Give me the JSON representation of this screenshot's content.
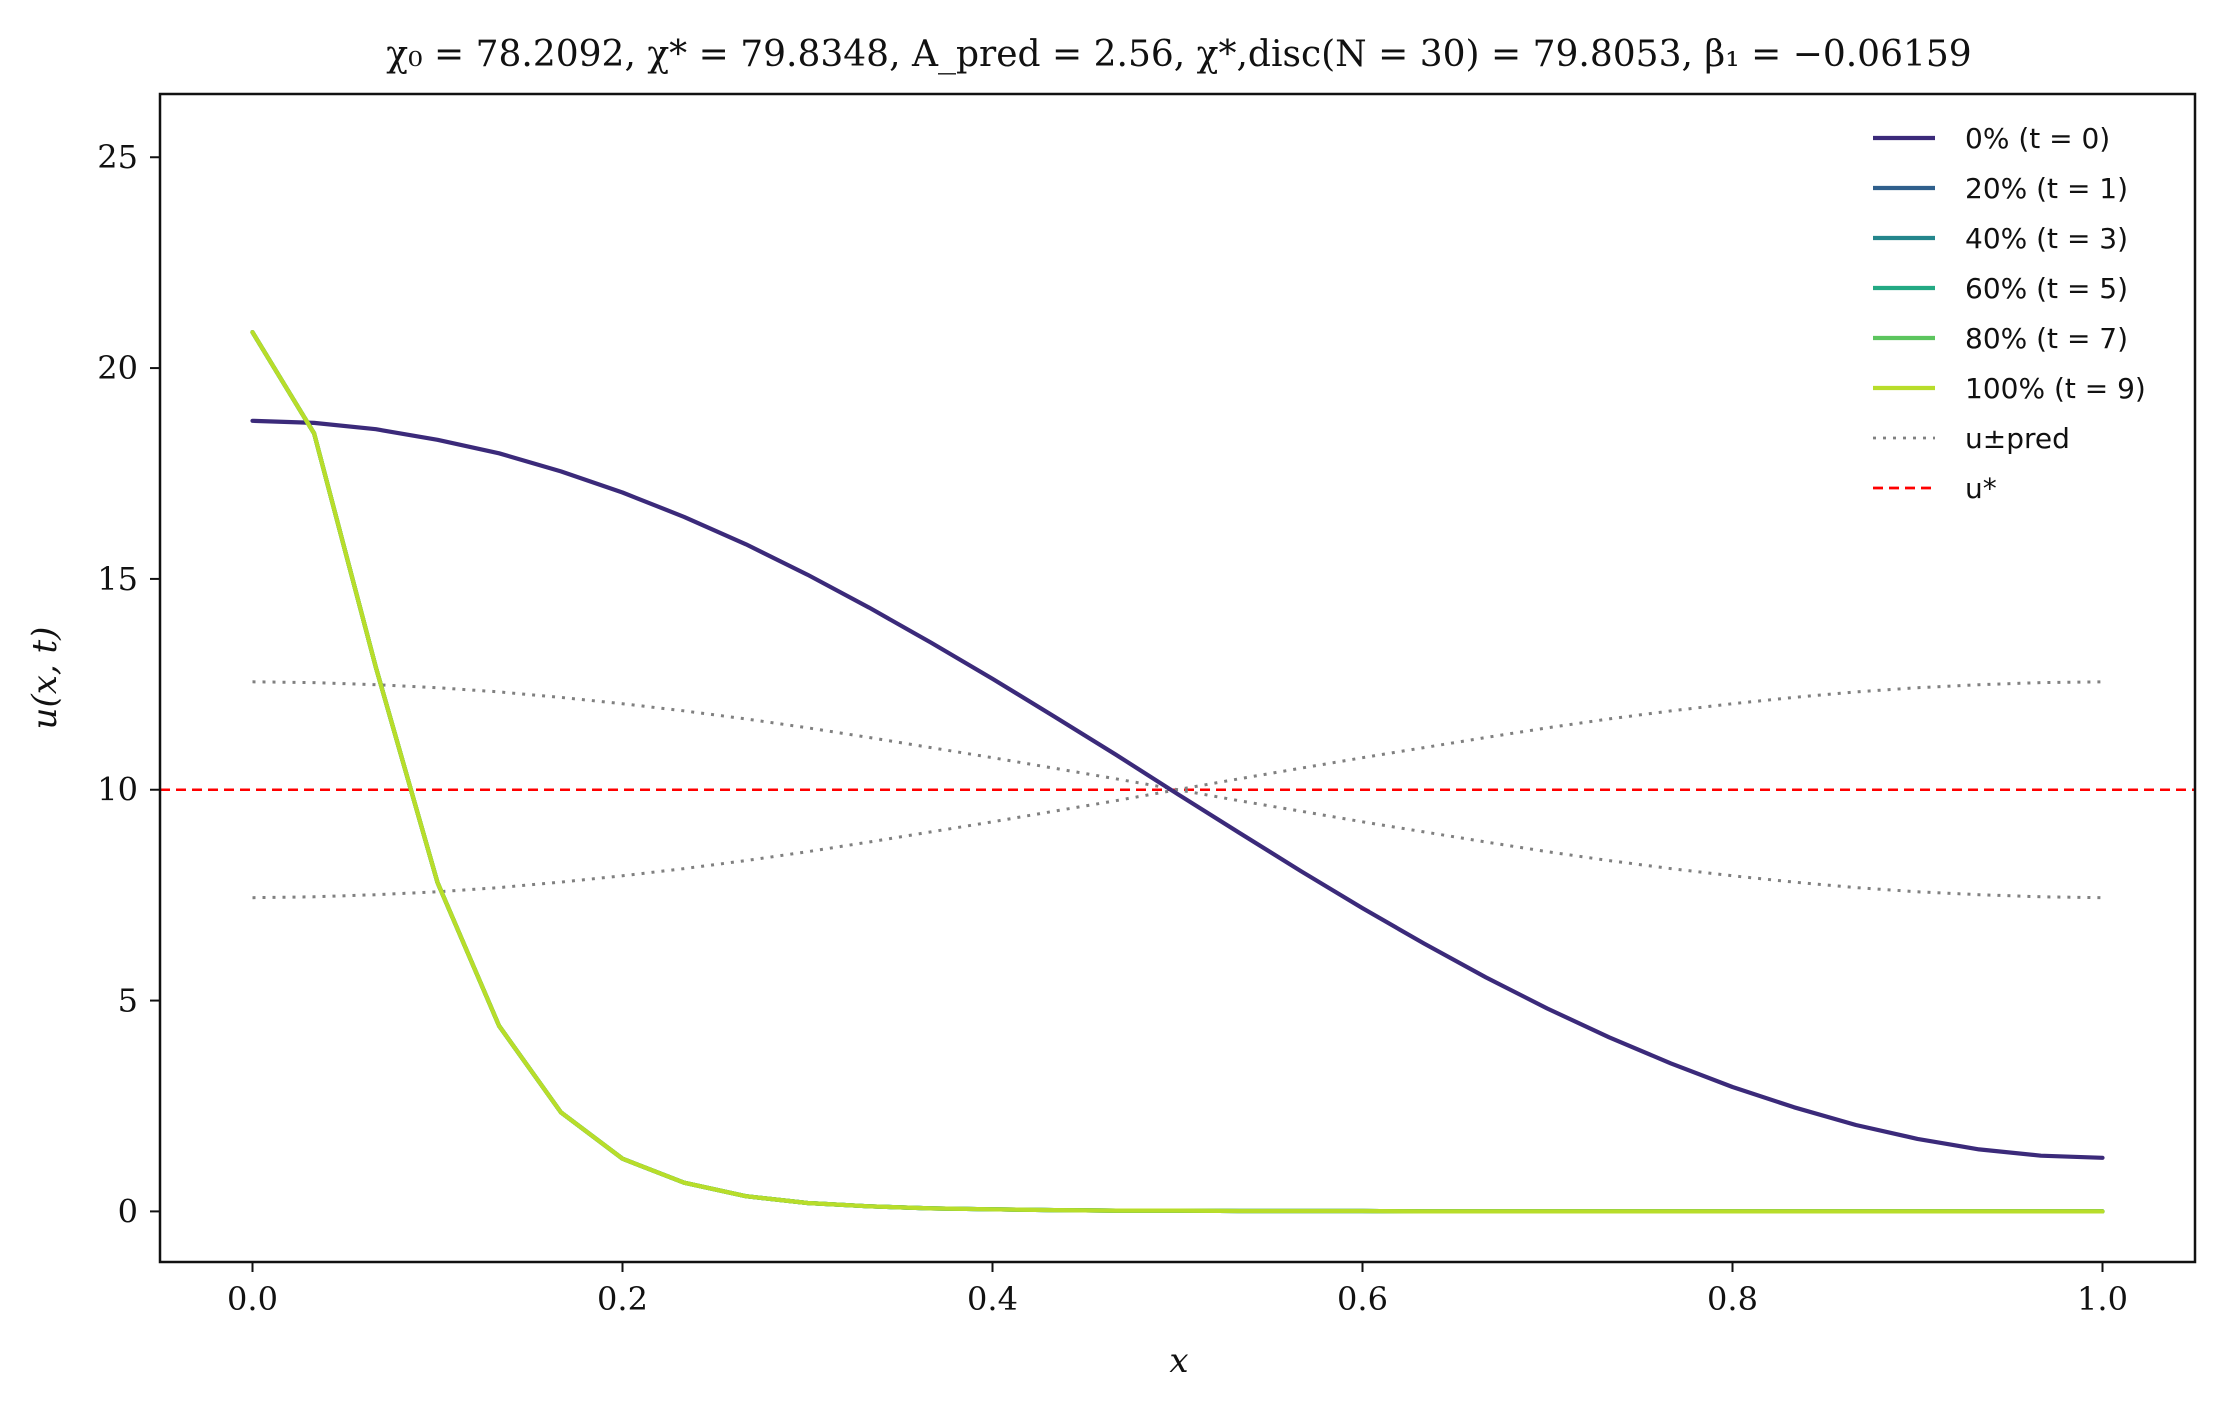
{
  "chart_data": {
    "type": "line",
    "title": "χ₀ = 78.2092,  χ* = 79.8348,  A_pred = 2.56,  χ*,disc(N = 30) = 79.8053,  β₁ = −0.06159",
    "xlabel": "x",
    "ylabel": "u(x, t)",
    "xlim": [
      -0.05,
      1.05
    ],
    "ylim": [
      -1.2,
      26.5
    ],
    "xticks": [
      0.0,
      0.2,
      0.4,
      0.6,
      0.8,
      1.0
    ],
    "xtick_labels": [
      "0.0",
      "0.2",
      "0.4",
      "0.6",
      "0.8",
      "1.0"
    ],
    "yticks": [
      0,
      5,
      10,
      15,
      20,
      25
    ],
    "ytick_labels": [
      "0",
      "5",
      "10",
      "15",
      "20",
      "25"
    ],
    "grid": false,
    "legend_position": "top-right",
    "x": [
      0.0,
      0.0333,
      0.0667,
      0.1,
      0.1333,
      0.1667,
      0.2,
      0.2333,
      0.2667,
      0.3,
      0.3333,
      0.3667,
      0.4,
      0.4333,
      0.4667,
      0.5,
      0.5333,
      0.5667,
      0.6,
      0.6333,
      0.6667,
      0.7,
      0.7333,
      0.7667,
      0.8,
      0.8333,
      0.8667,
      0.9,
      0.9333,
      0.9667,
      1.0
    ],
    "series": [
      {
        "name": "0% (t = 0)",
        "color": "#3b2a7a",
        "style": "solid",
        "values": [
          18.75,
          18.7,
          18.55,
          18.3,
          17.98,
          17.55,
          17.05,
          16.47,
          15.82,
          15.1,
          14.32,
          13.49,
          12.63,
          11.74,
          10.83,
          9.9,
          8.98,
          8.07,
          7.19,
          6.35,
          5.55,
          4.81,
          4.13,
          3.51,
          2.95,
          2.47,
          2.05,
          1.72,
          1.47,
          1.32,
          1.27
        ]
      },
      {
        "name": "20% (t = 1)",
        "color": "#2f5f8c",
        "style": "solid",
        "values": [
          20.85,
          18.45,
          12.9,
          7.8,
          4.4,
          2.35,
          1.25,
          0.68,
          0.36,
          0.2,
          0.12,
          0.07,
          0.05,
          0.03,
          0.02,
          0.02,
          0.01,
          0.01,
          0.01,
          0.0,
          0.0,
          0.0,
          0.0,
          0.0,
          0.0,
          0.0,
          0.0,
          0.0,
          0.0,
          0.0,
          0.0
        ]
      },
      {
        "name": "40% (t = 3)",
        "color": "#24868c",
        "style": "solid",
        "values": [
          20.85,
          18.45,
          12.9,
          7.8,
          4.4,
          2.35,
          1.25,
          0.68,
          0.36,
          0.2,
          0.12,
          0.07,
          0.05,
          0.03,
          0.02,
          0.02,
          0.01,
          0.01,
          0.01,
          0.0,
          0.0,
          0.0,
          0.0,
          0.0,
          0.0,
          0.0,
          0.0,
          0.0,
          0.0,
          0.0,
          0.0
        ]
      },
      {
        "name": "60% (t = 5)",
        "color": "#23a983",
        "style": "solid",
        "values": [
          20.85,
          18.45,
          12.9,
          7.8,
          4.4,
          2.35,
          1.25,
          0.68,
          0.36,
          0.2,
          0.12,
          0.07,
          0.05,
          0.03,
          0.02,
          0.02,
          0.01,
          0.01,
          0.01,
          0.0,
          0.0,
          0.0,
          0.0,
          0.0,
          0.0,
          0.0,
          0.0,
          0.0,
          0.0,
          0.0,
          0.0
        ]
      },
      {
        "name": "80% (t = 7)",
        "color": "#5cc55e",
        "style": "solid",
        "values": [
          20.85,
          18.45,
          12.9,
          7.8,
          4.4,
          2.35,
          1.25,
          0.68,
          0.36,
          0.2,
          0.12,
          0.07,
          0.05,
          0.03,
          0.02,
          0.02,
          0.01,
          0.01,
          0.01,
          0.0,
          0.0,
          0.0,
          0.0,
          0.0,
          0.0,
          0.0,
          0.0,
          0.0,
          0.0,
          0.0,
          0.0
        ]
      },
      {
        "name": "100% (t = 9)",
        "color": "#b8dd2a",
        "style": "solid",
        "values": [
          20.85,
          18.45,
          12.9,
          7.8,
          4.4,
          2.35,
          1.25,
          0.68,
          0.36,
          0.2,
          0.12,
          0.07,
          0.05,
          0.03,
          0.02,
          0.02,
          0.01,
          0.01,
          0.01,
          0.0,
          0.0,
          0.0,
          0.0,
          0.0,
          0.0,
          0.0,
          0.0,
          0.0,
          0.0,
          0.0,
          0.0
        ]
      },
      {
        "name": "u±pred",
        "color": "#808080",
        "style": "dotted",
        "pair": [
          [
            12.56,
            12.54,
            12.49,
            12.42,
            12.32,
            12.19,
            12.04,
            11.87,
            11.68,
            11.47,
            11.24,
            11.0,
            10.76,
            10.51,
            10.26,
            10.0,
            9.74,
            9.49,
            9.24,
            9.0,
            8.76,
            8.53,
            8.32,
            8.13,
            7.96,
            7.81,
            7.68,
            7.58,
            7.51,
            7.46,
            7.44
          ],
          [
            7.44,
            7.46,
            7.51,
            7.58,
            7.68,
            7.81,
            7.96,
            8.13,
            8.32,
            8.53,
            8.76,
            9.0,
            9.24,
            9.49,
            9.74,
            10.0,
            10.26,
            10.51,
            10.76,
            11.0,
            11.24,
            11.47,
            11.68,
            11.87,
            12.04,
            12.19,
            12.32,
            12.42,
            12.49,
            12.54,
            12.56
          ]
        ]
      },
      {
        "name": "u*",
        "color": "#ff0000",
        "style": "dashed",
        "constant": 10
      }
    ]
  }
}
